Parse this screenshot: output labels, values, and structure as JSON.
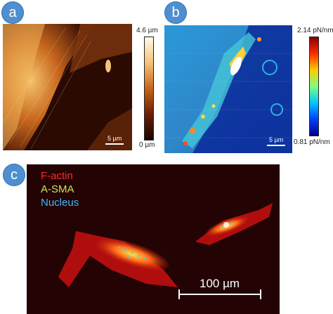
{
  "panels": {
    "a": {
      "label": "a",
      "scalebar": "5 µm",
      "colorbar": {
        "top": "4.6 µm",
        "bottom": "0 µm"
      }
    },
    "b": {
      "label": "b",
      "scalebar": "5 µm",
      "colorbar": {
        "top": "2.14 pN/nm",
        "bottom": "0.81 pN/nm"
      }
    },
    "c": {
      "label": "c",
      "legend": [
        "F-actin",
        "A-SMA",
        "Nucleus"
      ],
      "legend_colors": [
        "#ff2a2a",
        "#c9e65b",
        "#3fb8ff"
      ],
      "scalebar": "100 µm"
    }
  },
  "colors": {
    "badge": "#4f8fd0",
    "height_map_low": "#1a0500",
    "height_map_high": "#fff4d2",
    "stiffness_low": "#00008b",
    "stiffness_high": "#b00000"
  }
}
